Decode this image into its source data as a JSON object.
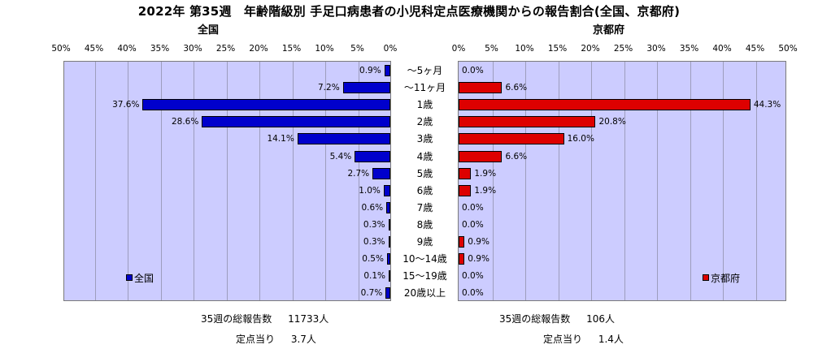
{
  "title": "2022年 第35週　年齢階級別 手足口病患者の小児科定点医療機関からの報告割合(全国、京都府)",
  "left_subtitle": "全国",
  "right_subtitle": "京都府",
  "colors": {
    "national": "#0000cc",
    "kyoto": "#dd0000",
    "plot_bg": "#ccccff"
  },
  "chart_data": {
    "type": "bar",
    "orientation": "horizontal-butterfly",
    "unit": "%",
    "xlim": [
      0,
      50
    ],
    "ticks": [
      "0%",
      "5%",
      "10%",
      "15%",
      "20%",
      "25%",
      "30%",
      "35%",
      "40%",
      "45%",
      "50%"
    ],
    "categories": [
      "～5ヶ月",
      "～11ヶ月",
      "1歳",
      "2歳",
      "3歳",
      "4歳",
      "5歳",
      "6歳",
      "7歳",
      "8歳",
      "9歳",
      "10～14歳",
      "15～19歳",
      "20歳以上"
    ],
    "series": [
      {
        "name": "全国",
        "values": [
          0.9,
          7.2,
          37.6,
          28.6,
          14.1,
          5.4,
          2.7,
          1.0,
          0.6,
          0.3,
          0.3,
          0.5,
          0.1,
          0.7
        ],
        "labels": [
          "0.9%",
          "7.2%",
          "37.6%",
          "28.6%",
          "14.1%",
          "5.4%",
          "2.7%",
          "1.0%",
          "0.6%",
          "0.3%",
          "0.3%",
          "0.5%",
          "0.1%",
          "0.7%"
        ]
      },
      {
        "name": "京都府",
        "values": [
          0.0,
          6.6,
          44.3,
          20.8,
          16.0,
          6.6,
          1.9,
          1.9,
          0.0,
          0.0,
          0.9,
          0.9,
          0.0,
          0.0
        ],
        "labels": [
          "0.0%",
          "6.6%",
          "44.3%",
          "20.8%",
          "16.0%",
          "6.6%",
          "1.9%",
          "1.9%",
          "0.0%",
          "0.0%",
          "0.9%",
          "0.9%",
          "0.0%",
          "0.0%"
        ]
      }
    ],
    "grid": true,
    "legend_placement": "bottom-left / bottom-right"
  },
  "footer": {
    "national": {
      "total_label": "35週の総報告数",
      "total_value": "11733人",
      "per_site_label": "定点当り",
      "per_site_value": "3.7人"
    },
    "kyoto": {
      "total_label": "35週の総報告数",
      "total_value": "106人",
      "per_site_label": "定点当り",
      "per_site_value": "1.4人"
    }
  }
}
